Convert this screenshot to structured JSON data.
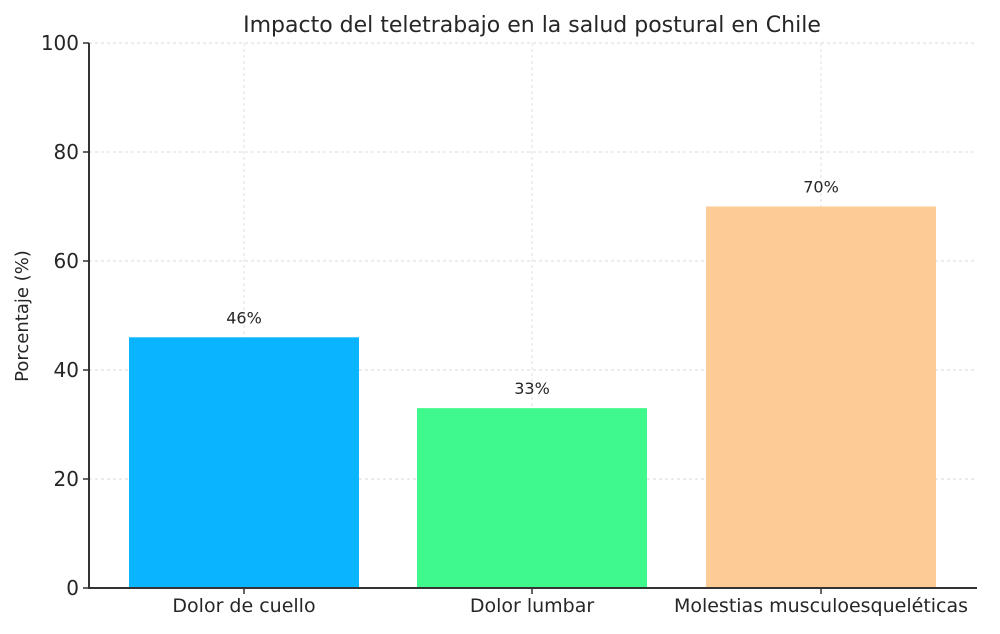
{
  "chart_data": {
    "type": "bar",
    "title": "Impacto del teletrabajo en la salud postural en Chile",
    "xlabel": "",
    "ylabel": "Porcentaje (%)",
    "ylim": [
      0,
      100
    ],
    "yticks": [
      0,
      20,
      40,
      60,
      80,
      100
    ],
    "grid": true,
    "categories": [
      "Dolor de cuello",
      "Dolor lumbar",
      "Molestias musculoesqueléticas"
    ],
    "values": [
      46,
      33,
      70
    ],
    "data_labels": [
      "46%",
      "33%",
      "70%"
    ],
    "colors": [
      "#0bb4ff",
      "#3ff98c",
      "#fccb96"
    ]
  }
}
